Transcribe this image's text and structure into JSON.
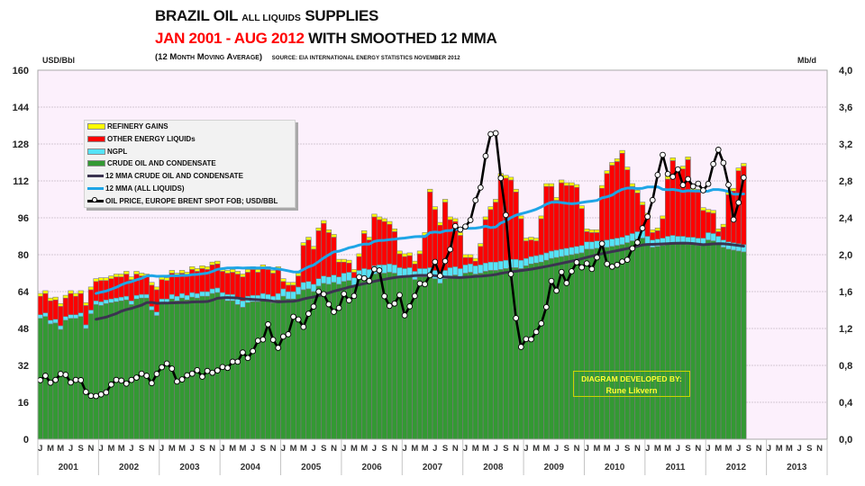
{
  "chart_data": {
    "type": "bar",
    "subtype": "stacked bar with line overlays, dual y-axis",
    "title": {
      "main_1": "BRAZIL OIL",
      "main_small": "ALL LIQUIDS",
      "main_2": "SUPPLIES",
      "period": "JAN 2001 - AUG 2012",
      "period_suffix": "WITH SMOOTHED 12 MMA",
      "note": "(12 Month Moving Average)",
      "source": "SOURCE: EIA INTERNATIONAL ENERGY STATISTICS   NOVEMBER 2012"
    },
    "y_left": {
      "label": "USD/Bbl",
      "range": [
        0,
        160
      ],
      "ticks": [
        0,
        16,
        32,
        48,
        64,
        80,
        96,
        112,
        128,
        144,
        160
      ],
      "tick_labels": [
        "0",
        "16",
        "32",
        "48",
        "64",
        "80",
        "96",
        "112",
        "128",
        "144",
        "160"
      ]
    },
    "y_right": {
      "label": "Mb/d",
      "range": [
        0,
        4
      ],
      "ticks": [
        0,
        0.4,
        0.8,
        1.2,
        1.6,
        2.0,
        2.4,
        2.8,
        3.2,
        3.6,
        4.0
      ],
      "tick_labels": [
        "0,0",
        "0,4",
        "0,8",
        "1,2",
        "1,6",
        "2,0",
        "2,4",
        "2,8",
        "3,2",
        "3,6",
        "4,0"
      ]
    },
    "x": {
      "start": "Jan 2001",
      "end": "Dec 2013",
      "data_start": "Jan 2001",
      "data_end": "Aug 2012",
      "years": [
        "2001",
        "2002",
        "2003",
        "2004",
        "2005",
        "2006",
        "2007",
        "2008",
        "2009",
        "2010",
        "2011",
        "2012",
        "2013"
      ],
      "month_tick_labels": [
        "J",
        "",
        "M",
        "",
        "M",
        "",
        "J",
        "",
        "S",
        "",
        "N",
        ""
      ]
    },
    "grid": true,
    "legend_position": "top-left",
    "colors": {
      "plot_background": "#fcf0fc",
      "credit_text": "#ffff33"
    },
    "legend": [
      {
        "label": "REFINERY GAINS",
        "color": "#ffff00",
        "kind": "box"
      },
      {
        "label": "OTHER ENERGY LIQUIDs",
        "color": "#ff0000",
        "kind": "box"
      },
      {
        "label": "NGPL",
        "color": "#55e3f7",
        "kind": "box"
      },
      {
        "label": "CRUDE  OIL AND CONDENSATE",
        "color": "#339933",
        "kind": "box"
      },
      {
        "label": "12 MMA CRUDE  OIL AND CONDENSATE",
        "color": "#3b3350",
        "kind": "line"
      },
      {
        "label": "12 MMA (ALL LIQUIDS)",
        "color": "#1ea5e6",
        "kind": "line"
      },
      {
        "label": "OIL PRICE, EUROPE BRENT SPOT FOB; USD/BBL",
        "color": "#000000",
        "kind": "marker"
      }
    ],
    "series": [
      {
        "key": "crude",
        "name": "CRUDE  OIL AND CONDENSATE",
        "kind": "stacked-bar",
        "axis": "right",
        "unit": "Mb/d",
        "color": "#339933",
        "values": [
          1.31,
          1.33,
          1.25,
          1.26,
          1.19,
          1.29,
          1.31,
          1.31,
          1.33,
          1.2,
          1.36,
          1.46,
          1.45,
          1.47,
          1.48,
          1.49,
          1.5,
          1.51,
          1.46,
          1.52,
          1.53,
          1.53,
          1.4,
          1.34,
          1.47,
          1.47,
          1.52,
          1.5,
          1.53,
          1.51,
          1.54,
          1.53,
          1.55,
          1.55,
          1.58,
          1.59,
          1.52,
          1.5,
          1.5,
          1.46,
          1.43,
          1.48,
          1.49,
          1.49,
          1.51,
          1.5,
          1.48,
          1.51,
          1.55,
          1.52,
          1.52,
          1.57,
          1.62,
          1.63,
          1.6,
          1.66,
          1.69,
          1.68,
          1.7,
          1.68,
          1.71,
          1.72,
          1.66,
          1.74,
          1.76,
          1.75,
          1.79,
          1.8,
          1.8,
          1.81,
          1.8,
          1.77,
          1.76,
          1.77,
          1.73,
          1.76,
          1.76,
          1.77,
          1.74,
          1.69,
          1.74,
          1.77,
          1.78,
          1.76,
          1.8,
          1.81,
          1.79,
          1.8,
          1.82,
          1.83,
          1.83,
          1.84,
          1.85,
          1.86,
          1.86,
          1.85,
          1.88,
          1.9,
          1.91,
          1.92,
          1.94,
          1.96,
          1.97,
          1.98,
          1.99,
          2.0,
          2.01,
          2.02,
          2.06,
          2.06,
          2.07,
          2.07,
          2.08,
          2.09,
          2.1,
          2.11,
          2.13,
          2.15,
          2.17,
          2.18,
          2.12,
          2.08,
          2.09,
          2.1,
          2.12,
          2.13,
          2.12,
          2.12,
          2.11,
          2.11,
          2.1,
          2.1,
          2.16,
          2.15,
          2.12,
          2.08,
          2.06,
          2.05,
          2.04,
          2.03
        ]
      },
      {
        "key": "ngpl",
        "name": "NGPL",
        "kind": "stacked-bar",
        "axis": "right",
        "unit": "Mb/d",
        "color": "#55e3f7",
        "values": [
          0.04,
          0.04,
          0.04,
          0.04,
          0.04,
          0.04,
          0.04,
          0.04,
          0.04,
          0.04,
          0.04,
          0.04,
          0.04,
          0.04,
          0.04,
          0.04,
          0.04,
          0.04,
          0.04,
          0.04,
          0.04,
          0.04,
          0.04,
          0.04,
          0.05,
          0.05,
          0.05,
          0.05,
          0.05,
          0.05,
          0.05,
          0.05,
          0.05,
          0.05,
          0.05,
          0.05,
          0.07,
          0.07,
          0.07,
          0.07,
          0.07,
          0.07,
          0.07,
          0.07,
          0.07,
          0.07,
          0.07,
          0.07,
          0.08,
          0.08,
          0.08,
          0.08,
          0.08,
          0.08,
          0.08,
          0.08,
          0.08,
          0.08,
          0.08,
          0.08,
          0.09,
          0.09,
          0.09,
          0.09,
          0.09,
          0.09,
          0.09,
          0.09,
          0.09,
          0.09,
          0.09,
          0.09,
          0.09,
          0.09,
          0.09,
          0.09,
          0.09,
          0.09,
          0.09,
          0.09,
          0.09,
          0.09,
          0.09,
          0.09,
          0.09,
          0.09,
          0.09,
          0.09,
          0.09,
          0.09,
          0.09,
          0.09,
          0.09,
          0.09,
          0.09,
          0.09,
          0.08,
          0.08,
          0.08,
          0.08,
          0.08,
          0.08,
          0.08,
          0.08,
          0.08,
          0.08,
          0.08,
          0.08,
          0.08,
          0.08,
          0.08,
          0.08,
          0.08,
          0.08,
          0.08,
          0.08,
          0.08,
          0.08,
          0.08,
          0.08,
          0.08,
          0.08,
          0.08,
          0.08,
          0.08,
          0.08,
          0.08,
          0.08,
          0.08,
          0.08,
          0.08,
          0.08,
          0.08,
          0.08,
          0.08,
          0.08,
          0.08,
          0.08,
          0.08,
          0.08
        ]
      },
      {
        "key": "other",
        "name": "OTHER ENERGY LIQUIDs",
        "kind": "stacked-bar",
        "axis": "right",
        "unit": "Mb/d",
        "color": "#ff0000",
        "values": [
          0.2,
          0.21,
          0.21,
          0.21,
          0.21,
          0.2,
          0.23,
          0.2,
          0.21,
          0.21,
          0.22,
          0.21,
          0.23,
          0.21,
          0.22,
          0.23,
          0.22,
          0.24,
          0.23,
          0.23,
          0.2,
          0.19,
          0.23,
          0.24,
          0.21,
          0.2,
          0.23,
          0.22,
          0.22,
          0.22,
          0.25,
          0.24,
          0.25,
          0.24,
          0.26,
          0.26,
          0.23,
          0.23,
          0.24,
          0.26,
          0.26,
          0.26,
          0.28,
          0.25,
          0.28,
          0.27,
          0.25,
          0.26,
          0.08,
          0.07,
          0.07,
          0.12,
          0.4,
          0.45,
          0.38,
          0.52,
          0.57,
          0.48,
          0.41,
          0.16,
          0.12,
          0.1,
          0.06,
          0.15,
          0.38,
          0.32,
          0.53,
          0.49,
          0.47,
          0.43,
          0.36,
          0.15,
          0.13,
          0.13,
          0.08,
          0.16,
          0.36,
          0.82,
          0.66,
          0.54,
          0.74,
          0.52,
          0.49,
          0.36,
          0.08,
          0.07,
          0.05,
          0.2,
          0.47,
          0.57,
          0.65,
          0.92,
          0.89,
          0.86,
          0.73,
          0.45,
          0.19,
          0.18,
          0.16,
          0.39,
          0.72,
          0.7,
          0.54,
          0.72,
          0.68,
          0.67,
          0.64,
          0.4,
          0.11,
          0.1,
          0.09,
          0.57,
          0.72,
          0.8,
          0.83,
          0.91,
          0.71,
          0.51,
          0.42,
          0.28,
          0.22,
          0.08,
          0.09,
          0.21,
          0.62,
          0.81,
          0.71,
          0.73,
          0.84,
          0.5,
          0.5,
          0.3,
          0.22,
          0.22,
          0.05,
          0.14,
          0.51,
          0.56,
          0.79,
          0.85
        ]
      },
      {
        "key": "refinery",
        "name": "REFINERY GAINS",
        "kind": "stacked-bar",
        "axis": "right",
        "unit": "Mb/d",
        "color": "#ffff00",
        "values": [
          0.03,
          0.03,
          0.03,
          0.03,
          0.03,
          0.03,
          0.03,
          0.03,
          0.03,
          0.03,
          0.03,
          0.03,
          0.03,
          0.03,
          0.03,
          0.03,
          0.03,
          0.03,
          0.03,
          0.03,
          0.03,
          0.03,
          0.03,
          0.03,
          0.03,
          0.03,
          0.03,
          0.03,
          0.03,
          0.03,
          0.03,
          0.03,
          0.03,
          0.03,
          0.03,
          0.03,
          0.03,
          0.03,
          0.03,
          0.03,
          0.03,
          0.03,
          0.03,
          0.03,
          0.03,
          0.03,
          0.03,
          0.03,
          0.03,
          0.03,
          0.03,
          0.03,
          0.03,
          0.03,
          0.03,
          0.03,
          0.03,
          0.03,
          0.03,
          0.03,
          0.03,
          0.03,
          0.03,
          0.03,
          0.03,
          0.03,
          0.03,
          0.03,
          0.03,
          0.03,
          0.03,
          0.03,
          0.03,
          0.03,
          0.03,
          0.03,
          0.03,
          0.03,
          0.03,
          0.03,
          0.03,
          0.03,
          0.03,
          0.03,
          0.03,
          0.03,
          0.03,
          0.03,
          0.03,
          0.03,
          0.03,
          0.03,
          0.03,
          0.03,
          0.03,
          0.03,
          0.03,
          0.03,
          0.03,
          0.03,
          0.03,
          0.03,
          0.03,
          0.03,
          0.03,
          0.03,
          0.03,
          0.03,
          0.03,
          0.03,
          0.03,
          0.03,
          0.03,
          0.03,
          0.03,
          0.03,
          0.03,
          0.03,
          0.03,
          0.03,
          0.03,
          0.03,
          0.03,
          0.03,
          0.03,
          0.03,
          0.03,
          0.03,
          0.03,
          0.03,
          0.03,
          0.03,
          0.03,
          0.03,
          0.03,
          0.03,
          0.03,
          0.03,
          0.03,
          0.03
        ]
      },
      {
        "key": "price",
        "name": "OIL PRICE, EUROPE BRENT SPOT FOB; USD/BBL",
        "kind": "line-markers",
        "axis": "left",
        "unit": "USD/Bbl",
        "color": "#000000",
        "values": [
          25.6,
          27.5,
          24.5,
          25.7,
          28.3,
          27.9,
          24.6,
          25.7,
          25.6,
          20.5,
          18.8,
          18.7,
          19.4,
          20.3,
          23.7,
          25.7,
          25.4,
          24.1,
          25.7,
          26.7,
          28.4,
          27.5,
          24.3,
          28.3,
          31.2,
          32.8,
          30.6,
          25.0,
          25.9,
          27.7,
          28.4,
          29.9,
          27.1,
          29.6,
          28.8,
          29.8,
          31.3,
          30.9,
          33.6,
          33.6,
          37.6,
          35.2,
          38.2,
          42.7,
          43.2,
          49.8,
          43.1,
          39.6,
          44.5,
          45.5,
          53.1,
          51.9,
          48.7,
          54.4,
          57.5,
          64.0,
          62.9,
          58.5,
          55.2,
          56.9,
          63.0,
          60.2,
          62.1,
          70.3,
          69.8,
          68.6,
          73.7,
          73.2,
          62.0,
          57.8,
          58.8,
          62.5,
          53.7,
          57.6,
          62.1,
          67.5,
          67.2,
          71.1,
          76.9,
          70.8,
          77.2,
          82.3,
          92.4,
          90.9,
          92.2,
          95.0,
          103.6,
          109.1,
          122.8,
          132.3,
          132.7,
          113.2,
          97.2,
          71.6,
          52.5,
          40.0,
          43.4,
          43.3,
          46.5,
          50.2,
          57.3,
          68.6,
          64.4,
          72.5,
          67.7,
          72.8,
          76.7,
          74.5,
          76.2,
          73.8,
          78.8,
          84.8,
          76.0,
          74.8,
          75.6,
          77.0,
          77.8,
          82.7,
          85.3,
          91.5,
          96.5,
          103.7,
          114.6,
          123.3,
          115.0,
          113.8,
          117.0,
          110.2,
          112.8,
          109.6,
          110.8,
          107.9,
          110.7,
          119.3,
          125.5,
          119.8,
          110.3,
          95.2,
          102.6,
          113.4
        ]
      },
      {
        "key": "mma_crude",
        "name": "12 MMA CRUDE  OIL AND CONDENSATE",
        "kind": "line",
        "axis": "right",
        "unit": "Mb/d",
        "color": "#3b3350",
        "derived_from": "crude",
        "window": 12
      },
      {
        "key": "mma_all",
        "name": "12 MMA (ALL LIQUIDS)",
        "kind": "line",
        "axis": "right",
        "unit": "Mb/d",
        "color": "#1ea5e6",
        "derived_from": "crude+ngpl+other+refinery",
        "window": 12
      }
    ],
    "credit": {
      "line1": "DIAGRAM DEVELOPED BY:",
      "line2": "Rune Likvern"
    }
  }
}
